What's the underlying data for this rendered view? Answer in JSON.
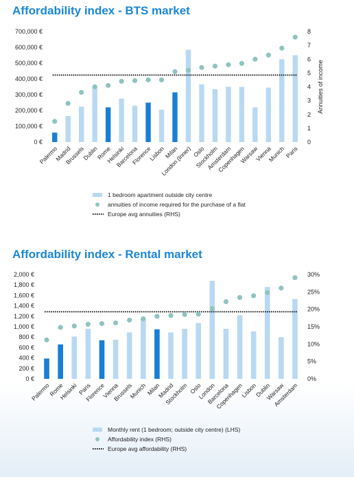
{
  "chart_data": [
    {
      "type": "bar",
      "title": "Affordability index - BTS market",
      "categories": [
        "Palermo",
        "Madrid",
        "Brussels",
        "Dublin",
        "Rome",
        "Helsinki",
        "Barcelona",
        "Florence",
        "Lisbon",
        "Milan",
        "London (Inner)",
        "Oslo",
        "Stockholm",
        "Amsterdam",
        "Copenhagen",
        "Warsaw",
        "Vienna",
        "Munich",
        "Paris"
      ],
      "highlighted": [
        "Palermo",
        "Rome",
        "Florence",
        "Milan"
      ],
      "series": [
        {
          "name": "1 bedroom apartment outside city centre",
          "axis": "left",
          "kind": "bar",
          "values": [
            60000,
            165000,
            225000,
            355000,
            220000,
            275000,
            230000,
            250000,
            205000,
            315000,
            585000,
            365000,
            335000,
            350000,
            350000,
            220000,
            345000,
            525000,
            550000
          ]
        },
        {
          "name": "annuities of income required for the purchase of a flat",
          "axis": "right",
          "kind": "dot",
          "values": [
            1.5,
            2.8,
            3.6,
            4.0,
            4.1,
            4.4,
            4.45,
            4.5,
            4.5,
            5.1,
            5.2,
            5.4,
            5.5,
            5.6,
            5.7,
            6.0,
            6.3,
            6.8,
            7.6
          ]
        },
        {
          "name": "Europe avg annuities (RHS)",
          "axis": "right",
          "kind": "dotted-line",
          "value": 4.85
        }
      ],
      "y_left": {
        "min": 0,
        "max": 700000,
        "ticks": [
          "0 €",
          "100,000 €",
          "200,000 €",
          "300,000 €",
          "400,000 €",
          "500,000 €",
          "600,000 €",
          "700,000 €"
        ]
      },
      "y_right": {
        "min": 0,
        "max": 8,
        "ticks": [
          "0",
          "1",
          "2",
          "3",
          "4",
          "5",
          "6",
          "7",
          "8"
        ],
        "label": "Annuities of income"
      },
      "legend_position": "bottom",
      "grid": false
    },
    {
      "type": "bar",
      "title": "Affordability index - Rental market",
      "categories": [
        "Palermo",
        "Rome",
        "Helsinki",
        "Paris",
        "Florence",
        "Vienna",
        "Brussels",
        "Munich",
        "Milan",
        "Madrid",
        "Stockholm",
        "Oslo",
        "London",
        "Barcelona",
        "Copenhagen",
        "Lisbon",
        "Dublin",
        "Warsaw",
        "Amsterdam"
      ],
      "highlighted": [
        "Palermo",
        "Rome",
        "Florence",
        "Milan"
      ],
      "series": [
        {
          "name": "Monthly rent (1 bedroom; outside city centre) (LHS)",
          "axis": "left",
          "kind": "bar",
          "values": [
            390,
            660,
            810,
            960,
            740,
            750,
            890,
            1150,
            950,
            890,
            960,
            1070,
            1880,
            960,
            1220,
            910,
            1760,
            800,
            1530
          ]
        },
        {
          "name": "Affordability index (RHS)",
          "axis": "right",
          "kind": "dot",
          "values": [
            11.2,
            14.8,
            15.2,
            15.7,
            15.9,
            16.1,
            16.9,
            17.3,
            18.0,
            18.2,
            18.5,
            18.6,
            20.2,
            22.2,
            23.4,
            23.9,
            24.8,
            26.1,
            29.1
          ]
        },
        {
          "name": "Europe avg affordability (RHS)",
          "axis": "right",
          "kind": "dotted-line",
          "value": 19.3
        }
      ],
      "y_left": {
        "min": 0,
        "max": 2000,
        "ticks": [
          "0 €",
          "200 €",
          "400 €",
          "600 €",
          "800 €",
          "1,000 €",
          "1,200 €",
          "1,400 €",
          "1,600 €",
          "1,800 €",
          "2,000 €"
        ]
      },
      "y_right": {
        "min": 0,
        "max": 30,
        "ticks": [
          "0%",
          "5%",
          "10%",
          "15%",
          "20%",
          "25%",
          "30%"
        ]
      },
      "legend_position": "bottom",
      "grid": false
    }
  ],
  "colors": {
    "title": "#1a86d6",
    "bar": "#b9d9f3",
    "bar_highlight": "#1a7fd4",
    "dot": "#8fc4c0",
    "avg_line": "#111111"
  }
}
